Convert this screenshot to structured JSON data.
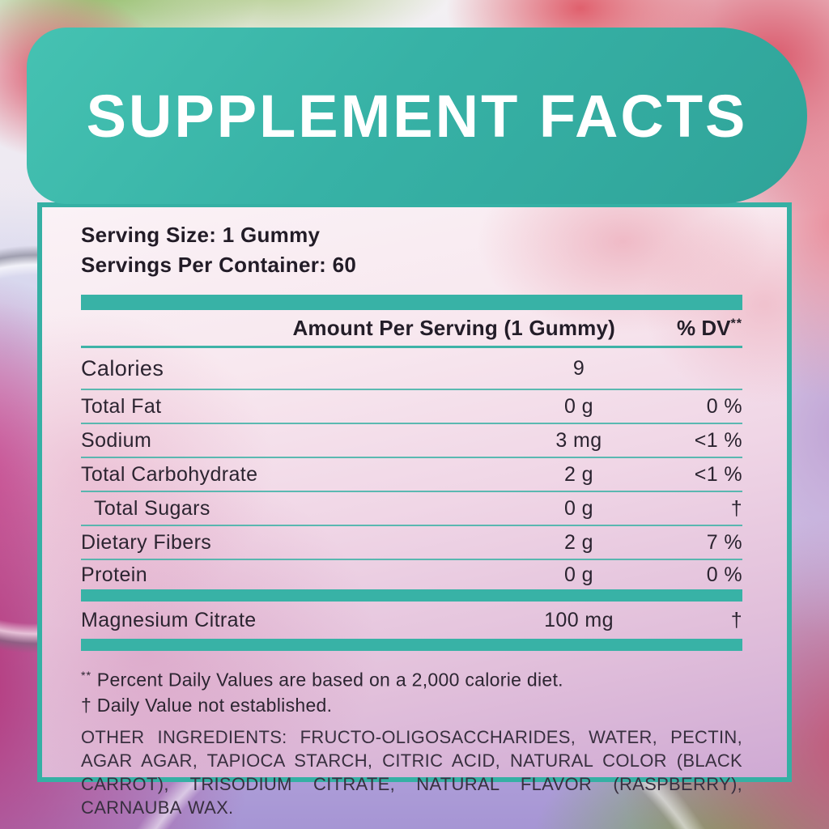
{
  "banner": {
    "title": "SUPPLEMENT FACTS"
  },
  "panel": {
    "serving_size": "Serving Size: 1 Gummy",
    "servings_per_container": "Servings Per Container: 60",
    "table": {
      "header": {
        "amount_label": "Amount Per Serving (1 Gummy)",
        "dv_label": "% DV",
        "dv_marker": "**"
      },
      "rows": [
        {
          "label": "Calories",
          "amount": "9",
          "dv": ""
        },
        {
          "label": "Total Fat",
          "amount": "0 g",
          "dv": "0 %"
        },
        {
          "label": "Sodium",
          "amount": "3 mg",
          "dv": "<1 %"
        },
        {
          "label": "Total Carbohydrate",
          "amount": "2 g",
          "dv": "<1 %"
        },
        {
          "label": "Total Sugars",
          "amount": "0 g",
          "dv": "†"
        },
        {
          "label": "Dietary Fibers",
          "amount": "2 g",
          "dv": "7 %"
        },
        {
          "label": "Protein",
          "amount": "0 g",
          "dv": "0 %"
        }
      ],
      "mineral_row": {
        "label": "Magnesium Citrate",
        "amount": "100 mg",
        "dv": "†"
      }
    },
    "footnotes": [
      {
        "marker": "**",
        "text": "Percent Daily Values are based on a 2,000 calorie diet."
      },
      {
        "marker": "†",
        "text": "Daily Value not established."
      }
    ],
    "other_ingredients": "OTHER INGREDIENTS: FRUCTO-OLIGOSACCHARIDES, WATER, PECTIN, AGAR AGAR, TAPIOCA STARCH, CITRIC ACID, NATURAL COLOR (BLACK CARROT), TRISODIUM CITRATE, NATURAL FLAVOR (RASPBERRY), CARNAUBA WAX."
  },
  "colors": {
    "accent_teal": "#38b2a6",
    "panel_border": "#35b0a4",
    "text_dark": "#2b2430",
    "banner_text": "#ffffff"
  }
}
